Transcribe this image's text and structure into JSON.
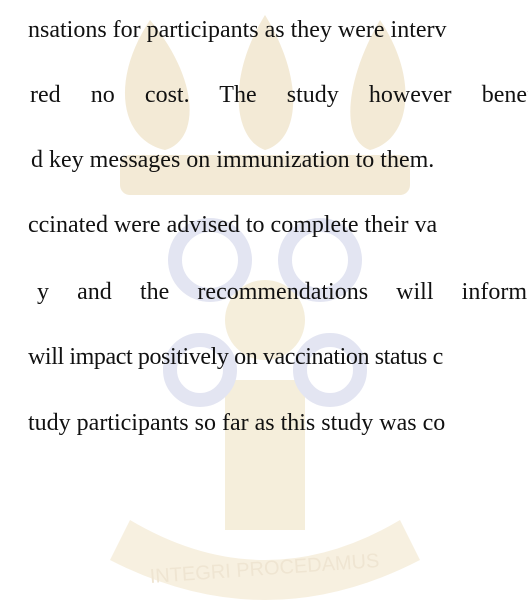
{
  "document": {
    "lines": [
      "nsations for participants as they were interv",
      "red no cost. The study however benef",
      "d key messages on immunization to them.",
      "ccinated were advised to complete their va",
      "y and the recommendations will inform",
      "will impact positively on vaccination status c",
      "tudy participants so far as this study was co"
    ],
    "watermark": "INTEGRI PROCEDAMUS"
  }
}
